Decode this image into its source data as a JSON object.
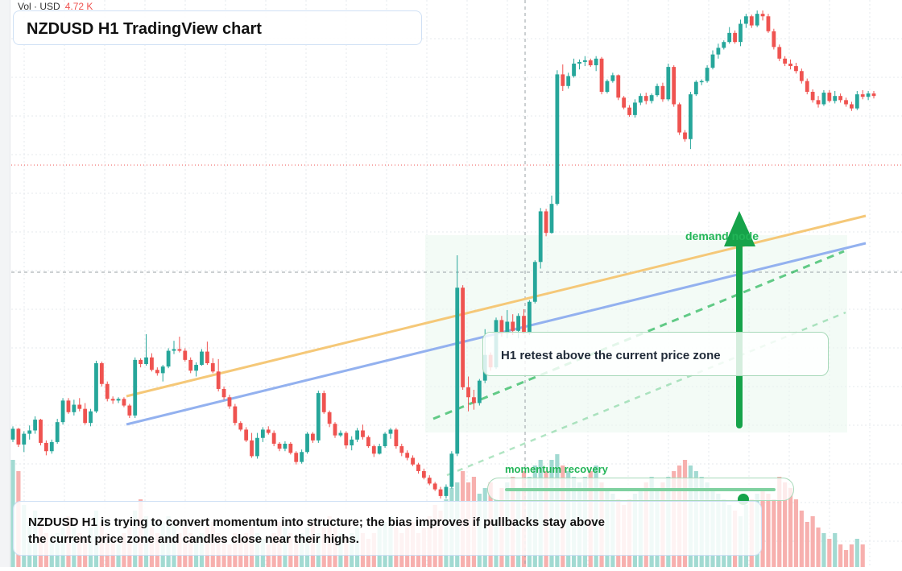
{
  "chart": {
    "title": "NZDUSD H1 TradingView chart",
    "instrument": "NZDUSD",
    "timeframe": "H1"
  },
  "volume_legend": {
    "label": "Vol · USD",
    "value": "4.72 K"
  },
  "annotations": {
    "retest_callout": "H1 retest above the current price zone",
    "momentum_label": "momentum recovery",
    "demand_label": "demand node",
    "summary": "NZDUSD H1 is trying to convert momentum into structure; the bias improves if pullbacks stay above the current price zone and candles close near their highs."
  },
  "momentum_slider": {
    "level": 0.88
  },
  "colors": {
    "up_candle": "#26a69a",
    "down_candle": "#ef5350",
    "up_volume": "#98d6cd",
    "down_volume": "#f6a7a5",
    "trendline_upper": "#f5c878",
    "trendline_lower": "#93b1ef",
    "dashed_trend": "#22b557",
    "arrow": "#16a34a",
    "zone_fill": "#eaf7ee"
  },
  "chart_data": {
    "type": "candlestick",
    "ohlc": [
      [
        140.2,
        141.8,
        139.9,
        141.5
      ],
      [
        141.5,
        141.6,
        139.3,
        139.6
      ],
      [
        139.6,
        141.2,
        138.7,
        140.9
      ],
      [
        140.9,
        141.9,
        140.2,
        141.3
      ],
      [
        141.3,
        143.0,
        140.9,
        142.6
      ],
      [
        142.6,
        142.7,
        139.5,
        139.8
      ],
      [
        139.8,
        140.1,
        138.3,
        138.8
      ],
      [
        138.8,
        140.2,
        138.5,
        139.9
      ],
      [
        139.9,
        142.7,
        139.7,
        142.3
      ],
      [
        142.3,
        145.2,
        142.0,
        144.9
      ],
      [
        144.9,
        145.2,
        143.3,
        143.5
      ],
      [
        143.5,
        145.0,
        143.1,
        144.4
      ],
      [
        144.4,
        145.2,
        143.6,
        143.9
      ],
      [
        143.9,
        144.6,
        142.0,
        142.2
      ],
      [
        142.2,
        143.9,
        141.8,
        143.6
      ],
      [
        143.6,
        149.7,
        143.4,
        149.4
      ],
      [
        149.4,
        149.6,
        146.6,
        146.9
      ],
      [
        146.9,
        147.2,
        144.8,
        145.1
      ],
      [
        145.1,
        145.4,
        144.5,
        144.9
      ],
      [
        144.9,
        145.3,
        144.6,
        145.1
      ],
      [
        145.1,
        145.3,
        144.1,
        144.3
      ],
      [
        144.3,
        144.5,
        142.8,
        143.1
      ],
      [
        143.1,
        150.1,
        142.8,
        149.8
      ],
      [
        149.8,
        150.0,
        148.9,
        149.3
      ],
      [
        149.3,
        152.9,
        149.1,
        150.1
      ],
      [
        150.1,
        150.6,
        148.4,
        148.6
      ],
      [
        148.6,
        148.9,
        147.9,
        148.2
      ],
      [
        148.2,
        149.2,
        147.2,
        149.0
      ],
      [
        149.0,
        151.2,
        148.8,
        150.9
      ],
      [
        150.9,
        152.1,
        150.5,
        151.1
      ],
      [
        151.1,
        152.6,
        150.7,
        150.9
      ],
      [
        150.9,
        151.2,
        149.6,
        149.8
      ],
      [
        149.8,
        150.1,
        148.2,
        148.5
      ],
      [
        148.5,
        149.5,
        147.8,
        149.2
      ],
      [
        149.2,
        151.1,
        149.1,
        150.8
      ],
      [
        150.8,
        152.0,
        149.2,
        149.4
      ],
      [
        149.4,
        150.0,
        148.2,
        148.4
      ],
      [
        148.4,
        149.9,
        146.0,
        146.3
      ],
      [
        146.3,
        146.6,
        145.0,
        145.3
      ],
      [
        145.3,
        145.6,
        143.9,
        144.2
      ],
      [
        144.2,
        144.5,
        141.9,
        142.2
      ],
      [
        142.2,
        142.4,
        141.2,
        141.4
      ],
      [
        141.4,
        141.7,
        139.9,
        140.1
      ],
      [
        140.1,
        141.0,
        138.0,
        138.2
      ],
      [
        138.2,
        141.0,
        137.9,
        140.4
      ],
      [
        140.4,
        141.7,
        139.9,
        141.4
      ],
      [
        141.4,
        141.8,
        140.8,
        141.0
      ],
      [
        141.0,
        141.3,
        139.4,
        139.7
      ],
      [
        139.7,
        139.9,
        138.8,
        139.1
      ],
      [
        139.1,
        140.0,
        138.8,
        139.7
      ],
      [
        139.7,
        139.9,
        138.4,
        138.6
      ],
      [
        138.6,
        138.8,
        137.2,
        137.5
      ],
      [
        137.5,
        139.0,
        137.3,
        138.7
      ],
      [
        138.7,
        141.1,
        138.5,
        140.9
      ],
      [
        140.9,
        141.1,
        139.8,
        140.1
      ],
      [
        140.1,
        146.1,
        139.8,
        145.8
      ],
      [
        145.8,
        146.1,
        143.3,
        143.5
      ],
      [
        143.5,
        143.7,
        141.7,
        142.1
      ],
      [
        142.1,
        142.3,
        140.4,
        140.7
      ],
      [
        140.7,
        141.3,
        140.5,
        141.0
      ],
      [
        141.0,
        141.2,
        139.1,
        139.5
      ],
      [
        139.5,
        140.6,
        138.9,
        140.2
      ],
      [
        140.2,
        141.6,
        139.9,
        141.3
      ],
      [
        141.3,
        142.0,
        140.2,
        140.5
      ],
      [
        140.5,
        140.7,
        139.2,
        139.4
      ],
      [
        139.4,
        139.6,
        138.1,
        138.5
      ],
      [
        138.5,
        139.7,
        138.4,
        139.4
      ],
      [
        139.4,
        141.1,
        139.2,
        140.9
      ],
      [
        140.9,
        141.6,
        140.3,
        141.4
      ],
      [
        141.4,
        141.6,
        139.1,
        139.4
      ],
      [
        139.4,
        139.7,
        138.2,
        138.6
      ],
      [
        138.6,
        138.9,
        137.7,
        138.0
      ],
      [
        138.0,
        138.3,
        137.0,
        137.2
      ],
      [
        137.2,
        137.4,
        136.1,
        136.4
      ],
      [
        136.4,
        136.7,
        135.4,
        135.6
      ],
      [
        135.6,
        135.9,
        134.7,
        134.9
      ],
      [
        134.9,
        135.1,
        134.0,
        134.2
      ],
      [
        134.2,
        134.5,
        133.1,
        133.4
      ],
      [
        133.4,
        134.8,
        133.1,
        134.5
      ],
      [
        134.5,
        138.8,
        134.3,
        138.5
      ],
      [
        138.5,
        162.4,
        138.2,
        158.5
      ],
      [
        158.5,
        158.8,
        146.2,
        146.5
      ],
      [
        146.5,
        147.8,
        143.6,
        145.3
      ],
      [
        145.3,
        146.2,
        143.8,
        144.6
      ],
      [
        144.6,
        147.5,
        144.3,
        147.3
      ],
      [
        147.3,
        153.5,
        147.0,
        150.4
      ],
      [
        150.4,
        150.7,
        148.5,
        148.9
      ],
      [
        148.9,
        154.9,
        148.7,
        154.6
      ],
      [
        154.6,
        155.1,
        152.6,
        153.0
      ],
      [
        153.0,
        155.8,
        152.4,
        154.4
      ],
      [
        154.4,
        155.3,
        152.8,
        153.3
      ],
      [
        153.3,
        155.4,
        152.4,
        155.1
      ],
      [
        155.1,
        155.9,
        152.9,
        153.0
      ],
      [
        153.0,
        157.0,
        152.8,
        156.8
      ],
      [
        156.8,
        161.8,
        156.6,
        161.6
      ],
      [
        161.6,
        168.1,
        160.8,
        167.7
      ],
      [
        167.7,
        168.0,
        164.7,
        165.1
      ],
      [
        165.1,
        169.6,
        165.0,
        168.6
      ],
      [
        168.6,
        184.7,
        168.4,
        184.2
      ],
      [
        184.2,
        185.4,
        182.2,
        182.8
      ],
      [
        182.8,
        184.4,
        182.5,
        184.0
      ],
      [
        184.0,
        186.1,
        183.8,
        185.5
      ],
      [
        185.5,
        186.0,
        184.8,
        185.7
      ],
      [
        185.7,
        186.4,
        185.2,
        185.9
      ],
      [
        185.9,
        186.1,
        185.1,
        185.3
      ],
      [
        185.3,
        186.4,
        184.6,
        186.1
      ],
      [
        186.1,
        186.3,
        181.8,
        182.1
      ],
      [
        182.1,
        183.6,
        181.9,
        183.4
      ],
      [
        183.4,
        184.4,
        183.2,
        184.1
      ],
      [
        184.1,
        184.2,
        181.1,
        181.4
      ],
      [
        181.4,
        181.6,
        180.0,
        180.2
      ],
      [
        180.2,
        180.5,
        179.1,
        179.3
      ],
      [
        179.3,
        181.2,
        179.0,
        180.8
      ],
      [
        180.8,
        181.9,
        180.5,
        181.6
      ],
      [
        181.6,
        182.0,
        180.6,
        181.0
      ],
      [
        181.0,
        181.9,
        180.7,
        181.7
      ],
      [
        181.7,
        183.1,
        181.5,
        182.8
      ],
      [
        182.8,
        183.2,
        180.9,
        181.2
      ],
      [
        181.2,
        185.5,
        181.0,
        185.1
      ],
      [
        185.1,
        185.3,
        180.3,
        180.6
      ],
      [
        180.6,
        180.8,
        176.9,
        177.2
      ],
      [
        177.2,
        177.5,
        176.1,
        176.4
      ],
      [
        176.4,
        182.1,
        175.2,
        181.8
      ],
      [
        181.8,
        183.5,
        181.6,
        183.3
      ],
      [
        183.3,
        183.6,
        182.9,
        183.4
      ],
      [
        183.4,
        185.3,
        183.2,
        185.0
      ],
      [
        185.0,
        187.1,
        184.8,
        186.6
      ],
      [
        186.6,
        187.9,
        186.1,
        187.4
      ],
      [
        187.4,
        188.3,
        187.2,
        188.1
      ],
      [
        188.1,
        189.9,
        187.9,
        189.2
      ],
      [
        189.2,
        189.5,
        187.9,
        188.1
      ],
      [
        188.1,
        190.8,
        187.6,
        190.3
      ],
      [
        190.3,
        191.5,
        189.8,
        191.2
      ],
      [
        191.2,
        191.4,
        189.8,
        190.1
      ],
      [
        190.1,
        191.9,
        189.9,
        191.5
      ],
      [
        191.5,
        191.9,
        190.7,
        191.2
      ],
      [
        191.2,
        191.5,
        189.2,
        189.4
      ],
      [
        189.4,
        189.7,
        187.2,
        187.5
      ],
      [
        187.5,
        187.8,
        185.8,
        186.1
      ],
      [
        186.1,
        186.4,
        185.2,
        185.5
      ],
      [
        185.5,
        186.0,
        184.8,
        185.2
      ],
      [
        185.2,
        185.6,
        184.3,
        184.6
      ],
      [
        184.6,
        184.9,
        183.1,
        183.4
      ],
      [
        183.4,
        183.7,
        181.8,
        182.1
      ],
      [
        182.1,
        182.4,
        180.8,
        181.1
      ],
      [
        181.1,
        181.6,
        180.2,
        180.6
      ],
      [
        180.6,
        182.3,
        180.4,
        182.0
      ],
      [
        182.0,
        182.3,
        180.8,
        181.0
      ],
      [
        181.0,
        182.2,
        180.7,
        181.6
      ],
      [
        181.6,
        181.9,
        180.8,
        181.1
      ],
      [
        181.1,
        181.4,
        180.3,
        180.6
      ],
      [
        180.6,
        180.9,
        179.8,
        180.1
      ],
      [
        180.1,
        182.2,
        179.9,
        181.8
      ],
      [
        181.8,
        182.3,
        181.2,
        181.5
      ],
      [
        181.5,
        182.2,
        181.1,
        181.9
      ],
      [
        181.9,
        182.2,
        181.3,
        181.6
      ]
    ],
    "volumes": [
      0.95,
      0.85,
      0.55,
      0.4,
      0.5,
      0.4,
      0.3,
      0.25,
      0.3,
      0.35,
      0.45,
      0.35,
      0.3,
      0.25,
      0.35,
      0.5,
      0.4,
      0.3,
      0.25,
      0.2,
      0.3,
      0.35,
      0.5,
      0.6,
      0.45,
      0.35,
      0.3,
      0.4,
      0.45,
      0.4,
      0.3,
      0.35,
      0.3,
      0.25,
      0.3,
      0.35,
      0.4,
      0.3,
      0.25,
      0.2,
      0.3,
      0.25,
      0.3,
      0.35,
      0.3,
      0.25,
      0.2,
      0.3,
      0.4,
      0.35,
      0.3,
      0.25,
      0.3,
      0.35,
      0.4,
      0.3,
      0.35,
      0.45,
      0.35,
      0.3,
      0.25,
      0.3,
      0.35,
      0.3,
      0.25,
      0.3,
      0.35,
      0.4,
      0.45,
      0.35,
      0.3,
      0.35,
      0.4,
      0.3,
      0.35,
      0.45,
      0.55,
      0.5,
      0.6,
      0.7,
      0.75,
      0.85,
      0.75,
      0.8,
      0.65,
      0.7,
      0.75,
      0.6,
      0.7,
      0.75,
      0.8,
      0.7,
      0.85,
      0.8,
      0.9,
      0.95,
      0.85,
      0.95,
      1.0,
      0.9,
      0.85,
      0.8,
      0.75,
      0.8,
      0.85,
      0.9,
      0.75,
      0.7,
      0.65,
      0.6,
      0.55,
      0.6,
      0.65,
      0.7,
      0.75,
      0.8,
      0.7,
      0.75,
      0.8,
      0.85,
      0.9,
      0.95,
      0.9,
      0.85,
      0.8,
      0.75,
      0.7,
      0.65,
      0.6,
      0.55,
      0.5,
      0.45,
      0.55,
      0.6,
      0.65,
      0.7,
      0.65,
      0.6,
      0.8,
      0.75,
      0.7,
      0.6,
      0.5,
      0.4,
      0.45,
      0.35,
      0.3,
      0.25,
      0.3,
      0.2,
      0.15,
      0.2,
      0.25,
      0.2
    ]
  }
}
